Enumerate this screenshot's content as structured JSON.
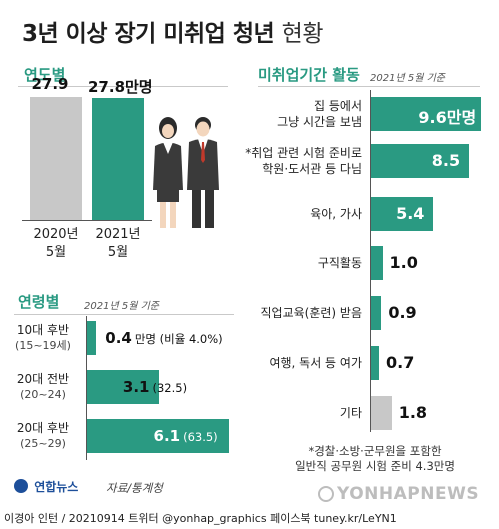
{
  "title": {
    "main": "3년 이상 장기 미취업 청년",
    "light": "현황"
  },
  "sections": {
    "year": {
      "title": "연도별"
    },
    "age": {
      "title": "연령별",
      "note": "2021년 5월 기준"
    },
    "activity": {
      "title": "미취업기간 활동",
      "note": "2021년 5월 기준"
    }
  },
  "source": "자료/통계청",
  "footnote": [
    "*경찰·소방·군무원을 포함한",
    "일반직 공무원 시험 준비 4.3만명"
  ],
  "logo": "연합뉴스",
  "watermark": "YONHAPNEWS",
  "footer": "이경아 인턴 / 20210914  트위터 @yonhap_graphics  페이스북 tuney.kr/LeYN1",
  "colors": {
    "accent": "#2a9a82",
    "grey": "#c8c8c8",
    "text": "#222222"
  },
  "chart_data": [
    {
      "type": "bar",
      "categories": [
        "2020년 5월",
        "2021년 5월"
      ],
      "category_lines": [
        [
          "2020년",
          "5월"
        ],
        [
          "2021년",
          "5월"
        ]
      ],
      "values": [
        27.9,
        27.8
      ],
      "value_labels": [
        "27.9",
        "27.8만명"
      ],
      "unit": "만명"
    },
    {
      "type": "bar",
      "orientation": "horizontal",
      "categories": [
        "10대 후반 (15~19세)",
        "20대 전반 (20~24)",
        "20대 후반 (25~29)"
      ],
      "category_lines": [
        [
          "10대 후반",
          "(15~19세)"
        ],
        [
          "20대 전반",
          "(20~24)"
        ],
        [
          "20대 후반",
          "(25~29)"
        ]
      ],
      "values": [
        0.4,
        3.1,
        6.1
      ],
      "value_labels": [
        "0.4",
        "3.1",
        "6.1"
      ],
      "value_suffix": [
        "만명 (비율 4.0%)",
        "(32.5)",
        "(63.5)"
      ],
      "unit": "만명"
    },
    {
      "type": "bar",
      "orientation": "horizontal",
      "categories": [
        "집 등에서 그냥 시간을 보냄",
        "*취업 관련 시험 준비로 학원·도서관 등 다님",
        "육아, 가사",
        "구직활동",
        "직업교육(훈련) 받음",
        "여행, 독서 등 여가",
        "기타"
      ],
      "category_lines": [
        [
          "집 등에서",
          "그냥 시간을 보냄"
        ],
        [
          "*취업 관련 시험 준비로",
          "학원·도서관 등 다님"
        ],
        [
          "육아, 가사"
        ],
        [
          "구직활동"
        ],
        [
          "직업교육(훈련) 받음"
        ],
        [
          "여행, 독서 등 여가"
        ],
        [
          "기타"
        ]
      ],
      "values": [
        9.6,
        8.5,
        5.4,
        1.0,
        0.9,
        0.7,
        1.8
      ],
      "value_labels": [
        "9.6만명",
        "8.5",
        "5.4",
        "1.0",
        "0.9",
        "0.7",
        "1.8"
      ],
      "unit": "만명"
    }
  ]
}
